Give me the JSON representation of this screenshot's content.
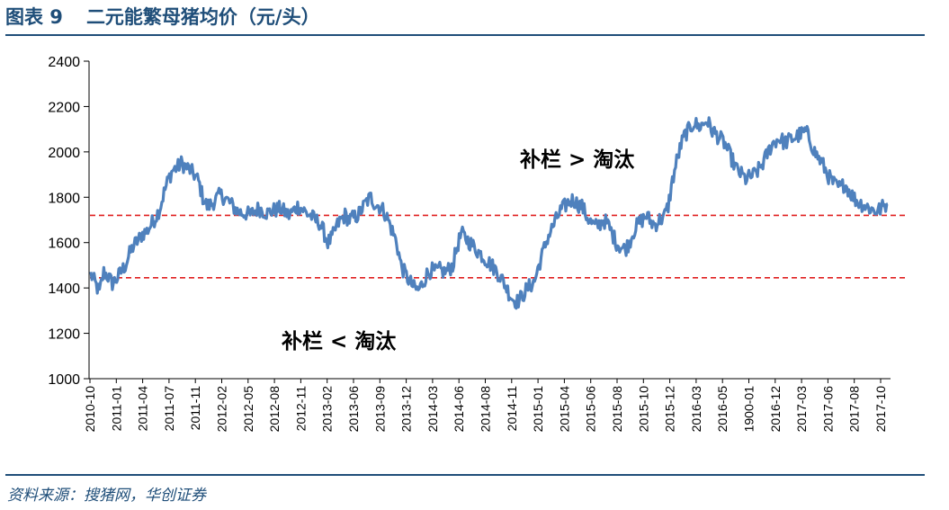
{
  "header": {
    "figure_no": "图表 9",
    "title": "二元能繁母猪均价（元/头）"
  },
  "source": "资料来源：搜猪网，华创证券",
  "chart_data": {
    "type": "line",
    "title": "二元能繁母猪均价（元/头）",
    "xlabel": "",
    "ylabel": "",
    "ylim": [
      1000,
      2400
    ],
    "yticks": [
      1000,
      1200,
      1400,
      1600,
      1800,
      2000,
      2200,
      2400
    ],
    "xtick_labels": [
      "2010-10",
      "2011-01",
      "2011-04",
      "2011-07",
      "2011-11",
      "2012-02",
      "2012-05",
      "2012-08",
      "2012-11",
      "2013-02",
      "2013-06",
      "2013-09",
      "2013-12",
      "2014-03",
      "2014-06",
      "2014-08",
      "2014-11",
      "2015-01",
      "2015-04",
      "2015-06",
      "2015-08",
      "2015-10",
      "2015-12",
      "2016-03",
      "2016-05",
      "1900-01",
      "2016-12",
      "2017-03",
      "2017-06",
      "2017-08",
      "2017-10"
    ],
    "grid": false,
    "line_color": "#4F81BD",
    "series": [
      {
        "values": [
          1460,
          1420,
          1380,
          1470,
          1450,
          1420,
          1440,
          1470,
          1500,
          1550,
          1590,
          1610,
          1640,
          1650,
          1680,
          1710,
          1750,
          1820,
          1880,
          1920,
          1930,
          1950,
          1935,
          1920,
          1900,
          1870,
          1800,
          1760,
          1770,
          1790,
          1810,
          1800,
          1780,
          1760,
          1740,
          1730,
          1730,
          1720,
          1740,
          1750,
          1740,
          1730,
          1740,
          1745,
          1750,
          1735,
          1720,
          1740,
          1760,
          1750,
          1730,
          1720,
          1700,
          1690,
          1650,
          1600,
          1620,
          1670,
          1700,
          1720,
          1700,
          1710,
          1720,
          1750,
          1780,
          1800,
          1770,
          1760,
          1740,
          1700,
          1650,
          1600,
          1500,
          1460,
          1430,
          1400,
          1390,
          1420,
          1460,
          1480,
          1470,
          1480,
          1470,
          1480,
          1500,
          1580,
          1640,
          1620,
          1600,
          1580,
          1560,
          1540,
          1520,
          1500,
          1480,
          1450,
          1420,
          1380,
          1350,
          1340,
          1360,
          1390,
          1410,
          1430,
          1500,
          1560,
          1620,
          1660,
          1700,
          1740,
          1760,
          1780,
          1790,
          1770,
          1760,
          1720,
          1690,
          1670,
          1680,
          1700,
          1680,
          1640,
          1600,
          1580,
          1570,
          1600,
          1650,
          1680,
          1700,
          1720,
          1690,
          1680,
          1700,
          1710,
          1760,
          1870,
          1960,
          2030,
          2080,
          2100,
          2130,
          2110,
          2120,
          2140,
          2100,
          2080,
          2060,
          2040,
          2000,
          1960,
          1920,
          1900,
          1880,
          1890,
          1900,
          1920,
          1950,
          1990,
          2030,
          2050,
          2060,
          2040,
          2050,
          2060,
          2070,
          2080,
          2090,
          2050,
          2000,
          1970,
          1940,
          1900,
          1870,
          1850,
          1840,
          1860,
          1830,
          1800,
          1780,
          1770,
          1760,
          1750,
          1740,
          1745,
          1760,
          1770
        ]
      }
    ],
    "reference_lines": [
      {
        "y": 1720,
        "color": "#E02020",
        "style": "dashed"
      },
      {
        "y": 1445,
        "color": "#E02020",
        "style": "dashed"
      }
    ],
    "annotations": [
      {
        "text": "补栏  > 淘汰",
        "x": "2015-08",
        "y": 1980
      },
      {
        "text": "补栏  < 淘汰",
        "x": "2013-02",
        "y": 1150
      }
    ]
  }
}
